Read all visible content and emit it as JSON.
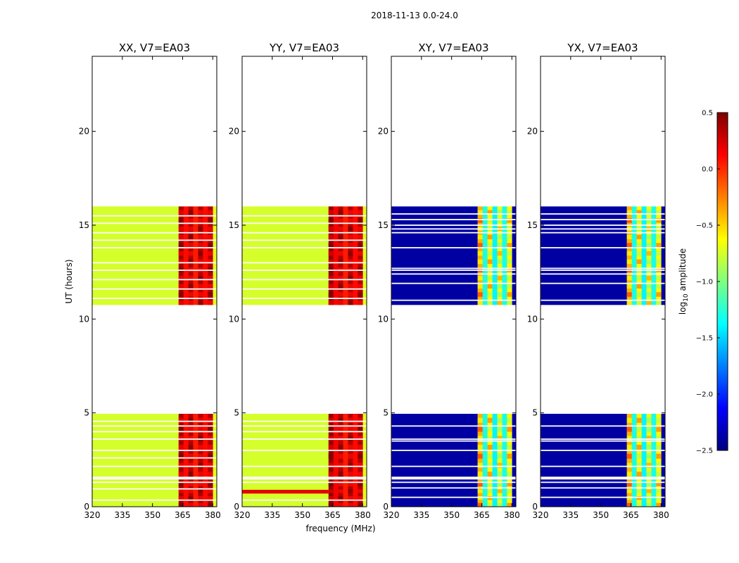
{
  "chart_data": {
    "type": "heatmap",
    "suptitle": "2018-11-13 0.0-24.0",
    "xlabel": "frequency (MHz)",
    "ylabel": "UT (hours)",
    "xlim": [
      320,
      382
    ],
    "ylim": [
      0,
      24
    ],
    "x_ticks": [
      320,
      335,
      350,
      365,
      380
    ],
    "y_ticks": [
      0,
      5,
      10,
      15,
      20
    ],
    "colorbar": {
      "label": "log10 amplitude",
      "range": [
        -2.5,
        0.5
      ],
      "ticks": [
        "0.5",
        "0.0",
        "−0.5",
        "−1.0",
        "−1.5",
        "−2.0",
        "−2.5"
      ],
      "tick_values": [
        0.5,
        0.0,
        -0.5,
        -1.0,
        -1.5,
        -2.0,
        -2.5
      ],
      "colormap": "jet",
      "colors": [
        "#00007f",
        "#0000ff",
        "#007fff",
        "#00ffff",
        "#7fff7f",
        "#ffff00",
        "#ff7f00",
        "#ff0000",
        "#7f0000"
      ]
    },
    "observation_blocks_hours": [
      [
        0.0,
        1.45
      ],
      [
        1.6,
        4.95
      ],
      [
        10.75,
        16.0
      ]
    ],
    "panels": [
      {
        "title": "XX, V7=EA03",
        "product": "parallel",
        "base_level": -0.75,
        "band_start_mhz": 363,
        "band_end_mhz": 380,
        "rfi_levels": [
          0.4,
          0.1,
          0.35,
          0.05,
          0.35,
          0.1,
          0.35
        ],
        "flag_lines_hours": [
          0.35,
          0.95,
          1.3,
          2.15,
          2.6,
          3.0,
          3.6,
          4.0,
          4.3,
          4.55,
          11.1,
          11.6,
          12.1,
          12.6,
          13.0,
          13.8,
          14.2,
          14.6,
          15.1,
          15.5
        ]
      },
      {
        "title": "YY, V7=EA03",
        "product": "parallel",
        "base_level": -0.75,
        "band_start_mhz": 363,
        "band_end_mhz": 380,
        "rfi_levels": [
          0.45,
          0.15,
          0.35,
          0.05,
          0.35,
          0.1,
          0.35
        ],
        "flag_lines_hours": [
          0.35,
          1.3,
          2.15,
          3.0,
          3.6,
          4.0,
          4.3,
          4.55,
          11.1,
          11.6,
          12.1,
          12.6,
          13.0,
          13.8,
          14.2,
          14.6,
          15.1,
          15.5
        ],
        "extra_band": {
          "hours": [
            0.7,
            0.9
          ],
          "level": 0.2
        }
      },
      {
        "title": "XY, V7=EA03",
        "product": "cross",
        "base_level": -2.4,
        "band_start_mhz": 363,
        "band_end_mhz": 380,
        "rfi_levels": [
          -0.4,
          -1.3,
          -0.6,
          -1.4,
          -0.7,
          -1.3,
          -0.6
        ],
        "flag_lines_hours": [
          0.5,
          1.0,
          1.3,
          2.15,
          3.0,
          3.5,
          3.6,
          4.3,
          11.0,
          11.9,
          12.4,
          12.6,
          12.7,
          13.8,
          14.6,
          14.8,
          15.0,
          15.3,
          15.6
        ]
      },
      {
        "title": "YX, V7=EA03",
        "product": "cross",
        "base_level": -2.4,
        "band_start_mhz": 363,
        "band_end_mhz": 380,
        "rfi_levels": [
          -0.4,
          -1.3,
          -0.6,
          -1.4,
          -0.7,
          -1.3,
          -0.6
        ],
        "flag_lines_hours": [
          0.5,
          1.0,
          1.3,
          2.15,
          3.0,
          3.5,
          3.6,
          4.3,
          11.0,
          11.9,
          12.4,
          12.6,
          12.7,
          13.8,
          14.6,
          14.8,
          15.0,
          15.3,
          15.6
        ]
      }
    ]
  }
}
